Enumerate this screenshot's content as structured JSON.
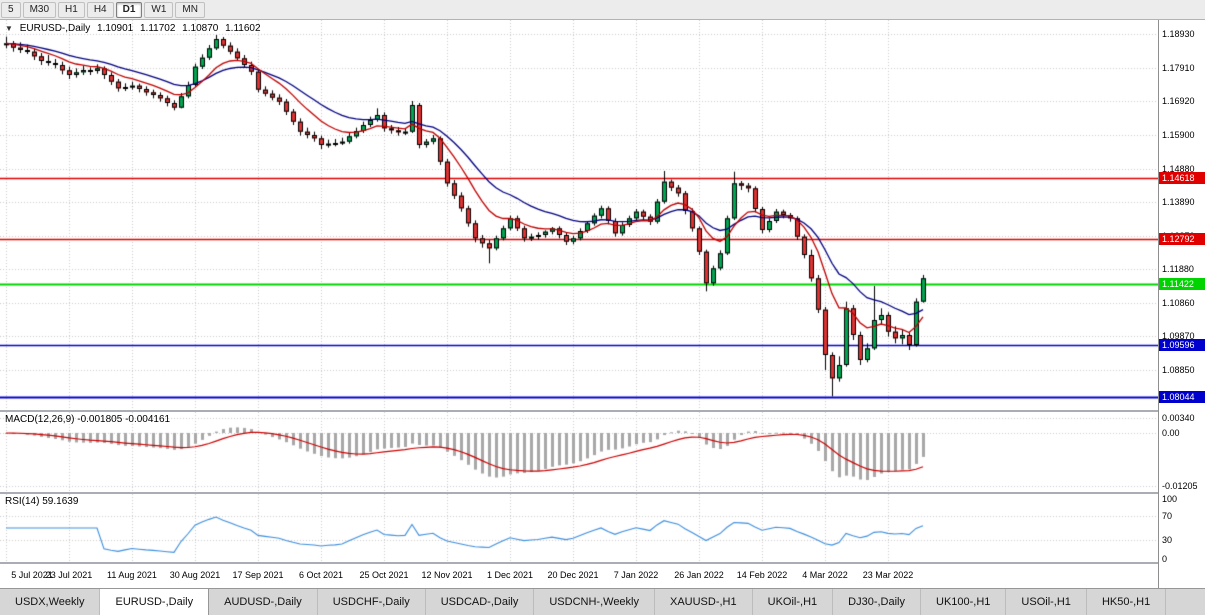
{
  "toolbar": {
    "periods": [
      "5",
      "M30",
      "H1",
      "H4",
      "D1",
      "W1",
      "MN"
    ],
    "active_period": "D1"
  },
  "icons": {
    "symbol_arrow": "▼"
  },
  "chart_header": {
    "symbol": "EURUSD-,Daily",
    "open": "1.10901",
    "high": "1.11702",
    "low": "1.10870",
    "close": "1.11602"
  },
  "macd_header": "MACD(12,26,9) -0.001805 -0.004161",
  "rsi_header": "RSI(14) 59.1639",
  "tabs": {
    "items": [
      "USDX,Weekly",
      "EURUSD-,Daily",
      "AUDUSD-,Daily",
      "USDCHF-,Daily",
      "USDCAD-,Daily",
      "USDCNH-,Weekly",
      "XAUUSD-,H1",
      "UKOil-,H1",
      "DJ30-,Daily",
      "UK100-,H1",
      "USOil-,H1",
      "HK50-,H1"
    ],
    "active": "EURUSD-,Daily"
  },
  "chart_data": {
    "type": "candlestick",
    "symbol": "EURUSD-,Daily",
    "y_axis": {
      "min": 1.0765,
      "max": 1.1935,
      "ticks": [
        "1.18930",
        "1.17910",
        "1.16920",
        "1.15900",
        "1.14880",
        "1.13890",
        "1.12870",
        "1.11880",
        "1.10860",
        "1.09870",
        "1.08850"
      ]
    },
    "x_labels": [
      {
        "index": 0,
        "label": "5 Jul 2021"
      },
      {
        "index": 9,
        "label": "23 Jul 2021"
      },
      {
        "index": 18,
        "label": "11 Aug 2021"
      },
      {
        "index": 27,
        "label": "30 Aug 2021"
      },
      {
        "index": 36,
        "label": "17 Sep 2021"
      },
      {
        "index": 45,
        "label": "6 Oct 2021"
      },
      {
        "index": 54,
        "label": "25 Oct 2021"
      },
      {
        "index": 63,
        "label": "12 Nov 2021"
      },
      {
        "index": 72,
        "label": "1 Dec 2021"
      },
      {
        "index": 81,
        "label": "20 Dec 2021"
      },
      {
        "index": 90,
        "label": "7 Jan 2022"
      },
      {
        "index": 99,
        "label": "26 Jan 2022"
      },
      {
        "index": 108,
        "label": "14 Feb 2022"
      },
      {
        "index": 117,
        "label": "4 Mar 2022"
      },
      {
        "index": 126,
        "label": "23 Mar 2022"
      }
    ],
    "h_lines": [
      {
        "value": 1.14618,
        "label": "1.14618",
        "color": "#e00000",
        "weight": 1.5
      },
      {
        "value": 1.12792,
        "label": "1.12792",
        "color": "#e00000",
        "weight": 1.5
      },
      {
        "value": 1.11422,
        "label": "1.11422",
        "color": "#00d400",
        "weight": 2
      },
      {
        "value": 1.09596,
        "label": "1.09596",
        "color": "#0000cc",
        "weight": 1.5
      },
      {
        "value": 1.08044,
        "label": "1.08044",
        "color": "#0000cc",
        "weight": 2
      }
    ],
    "moving_averages": [
      {
        "period": 18,
        "color": "#000080"
      },
      {
        "period": 9,
        "color": "#c00000"
      }
    ],
    "macd": {
      "fast": 12,
      "slow": 26,
      "signal": 9,
      "current_macd": "-0.001805",
      "current_signal": "-0.004161",
      "range": [
        -0.0135,
        0.0048
      ],
      "axis_ticks": [
        "0.00340",
        "0.00",
        "-0.01205"
      ]
    },
    "rsi": {
      "period": 14,
      "current_value": "59.1639",
      "levels": [
        70,
        30
      ],
      "axis_ticks": [
        "100",
        "70",
        "30",
        "0"
      ]
    },
    "colors": {
      "up": "#00a651",
      "down": "#e03232",
      "candle_border": "#000000",
      "grid": "#cccccc",
      "macd_hist": "#a8a8a8",
      "macd_signal": "#cc0000",
      "rsi_line": "#3e8ede"
    },
    "ohlc": [
      [
        1.186,
        1.1885,
        1.185,
        1.1865
      ],
      [
        1.1865,
        1.1872,
        1.184,
        1.1852
      ],
      [
        1.1852,
        1.1868,
        1.1836,
        1.1845
      ],
      [
        1.1845,
        1.1861,
        1.1833,
        1.184
      ],
      [
        1.184,
        1.1848,
        1.1815,
        1.1826
      ],
      [
        1.1826,
        1.1836,
        1.18,
        1.1812
      ],
      [
        1.1812,
        1.183,
        1.1798,
        1.1806
      ],
      [
        1.1806,
        1.1818,
        1.179,
        1.18
      ],
      [
        1.18,
        1.181,
        1.1772,
        1.1784
      ],
      [
        1.1784,
        1.1795,
        1.1758,
        1.177
      ],
      [
        1.177,
        1.179,
        1.1762,
        1.1778
      ],
      [
        1.1778,
        1.1797,
        1.177,
        1.1785
      ],
      [
        1.1785,
        1.1793,
        1.177,
        1.1782
      ],
      [
        1.1782,
        1.1802,
        1.1774,
        1.179
      ],
      [
        1.179,
        1.1796,
        1.1758,
        1.177
      ],
      [
        1.177,
        1.1778,
        1.174,
        1.175
      ],
      [
        1.175,
        1.1758,
        1.172,
        1.173
      ],
      [
        1.173,
        1.1745,
        1.1722,
        1.1734
      ],
      [
        1.1734,
        1.175,
        1.1726,
        1.1738
      ],
      [
        1.1738,
        1.1744,
        1.1718,
        1.1728
      ],
      [
        1.1728,
        1.1736,
        1.1708,
        1.1718
      ],
      [
        1.1718,
        1.1726,
        1.17,
        1.171
      ],
      [
        1.171,
        1.1718,
        1.169,
        1.17
      ],
      [
        1.17,
        1.1708,
        1.1676,
        1.1686
      ],
      [
        1.1686,
        1.1694,
        1.1664,
        1.1672
      ],
      [
        1.1672,
        1.1716,
        1.167,
        1.1706
      ],
      [
        1.1706,
        1.175,
        1.17,
        1.174
      ],
      [
        1.174,
        1.1804,
        1.1735,
        1.1795
      ],
      [
        1.1795,
        1.1832,
        1.1788,
        1.1822
      ],
      [
        1.1822,
        1.186,
        1.1815,
        1.185
      ],
      [
        1.185,
        1.189,
        1.1845,
        1.1878
      ],
      [
        1.1878,
        1.1884,
        1.185,
        1.1858
      ],
      [
        1.1858,
        1.1868,
        1.1832,
        1.184
      ],
      [
        1.184,
        1.185,
        1.1812,
        1.182
      ],
      [
        1.182,
        1.183,
        1.1792,
        1.18
      ],
      [
        1.18,
        1.181,
        1.177,
        1.178
      ],
      [
        1.178,
        1.1788,
        1.1718,
        1.1726
      ],
      [
        1.1726,
        1.1736,
        1.1706,
        1.1714
      ],
      [
        1.1714,
        1.1724,
        1.1694,
        1.1702
      ],
      [
        1.1702,
        1.1712,
        1.168,
        1.169
      ],
      [
        1.169,
        1.1698,
        1.165,
        1.166
      ],
      [
        1.166,
        1.1668,
        1.162,
        1.163
      ],
      [
        1.163,
        1.164,
        1.1588,
        1.16
      ],
      [
        1.16,
        1.1612,
        1.158,
        1.159
      ],
      [
        1.159,
        1.16,
        1.157,
        1.158
      ],
      [
        1.158,
        1.1588,
        1.1548,
        1.156
      ],
      [
        1.156,
        1.1576,
        1.1552,
        1.1564
      ],
      [
        1.1564,
        1.1578,
        1.1556,
        1.1566
      ],
      [
        1.1566,
        1.1582,
        1.156,
        1.157
      ],
      [
        1.157,
        1.1596,
        1.1564,
        1.1586
      ],
      [
        1.1586,
        1.1612,
        1.158,
        1.1602
      ],
      [
        1.1602,
        1.163,
        1.1596,
        1.162
      ],
      [
        1.162,
        1.1645,
        1.1614,
        1.1635
      ],
      [
        1.1635,
        1.167,
        1.163,
        1.165
      ],
      [
        1.165,
        1.1658,
        1.16,
        1.161
      ],
      [
        1.161,
        1.162,
        1.1594,
        1.1604
      ],
      [
        1.1604,
        1.1614,
        1.1588,
        1.1598
      ],
      [
        1.1598,
        1.161,
        1.159,
        1.16
      ],
      [
        1.16,
        1.1692,
        1.1596,
        1.168
      ],
      [
        1.168,
        1.1686,
        1.155,
        1.156
      ],
      [
        1.156,
        1.1578,
        1.1552,
        1.157
      ],
      [
        1.157,
        1.159,
        1.1562,
        1.158
      ],
      [
        1.158,
        1.1586,
        1.15,
        1.151
      ],
      [
        1.151,
        1.1518,
        1.1435,
        1.1445
      ],
      [
        1.1445,
        1.1455,
        1.1398,
        1.1408
      ],
      [
        1.1408,
        1.1418,
        1.136,
        1.137
      ],
      [
        1.137,
        1.1378,
        1.1315,
        1.1325
      ],
      [
        1.1325,
        1.1334,
        1.1268,
        1.128
      ],
      [
        1.128,
        1.129,
        1.1252,
        1.1265
      ],
      [
        1.1265,
        1.1275,
        1.1205,
        1.125
      ],
      [
        1.125,
        1.1288,
        1.1244,
        1.128
      ],
      [
        1.128,
        1.1318,
        1.1274,
        1.131
      ],
      [
        1.131,
        1.1348,
        1.1304,
        1.134
      ],
      [
        1.134,
        1.1348,
        1.1302,
        1.131
      ],
      [
        1.131,
        1.1318,
        1.127,
        1.128
      ],
      [
        1.128,
        1.1294,
        1.1272,
        1.1285
      ],
      [
        1.1285,
        1.1298,
        1.1276,
        1.129
      ],
      [
        1.129,
        1.1304,
        1.1282,
        1.13
      ],
      [
        1.13,
        1.1314,
        1.1292,
        1.131
      ],
      [
        1.131,
        1.1316,
        1.128,
        1.129
      ],
      [
        1.129,
        1.1298,
        1.126,
        1.127
      ],
      [
        1.127,
        1.1288,
        1.1262,
        1.128
      ],
      [
        1.128,
        1.131,
        1.1274,
        1.1302
      ],
      [
        1.1302,
        1.1332,
        1.1296,
        1.1325
      ],
      [
        1.1325,
        1.1355,
        1.1318,
        1.1348
      ],
      [
        1.1348,
        1.1378,
        1.134,
        1.137
      ],
      [
        1.137,
        1.1376,
        1.1322,
        1.1332
      ],
      [
        1.1332,
        1.134,
        1.1285,
        1.1295
      ],
      [
        1.1295,
        1.1328,
        1.1288,
        1.132
      ],
      [
        1.132,
        1.1348,
        1.1314,
        1.134
      ],
      [
        1.134,
        1.1368,
        1.1334,
        1.136
      ],
      [
        1.136,
        1.1366,
        1.1336,
        1.1345
      ],
      [
        1.1345,
        1.1352,
        1.132,
        1.133
      ],
      [
        1.133,
        1.1398,
        1.1324,
        1.139
      ],
      [
        1.139,
        1.1482,
        1.1384,
        1.145
      ],
      [
        1.145,
        1.1456,
        1.1422,
        1.1432
      ],
      [
        1.1432,
        1.144,
        1.1405,
        1.1415
      ],
      [
        1.1415,
        1.1422,
        1.1352,
        1.1362
      ],
      [
        1.1362,
        1.137,
        1.13,
        1.131
      ],
      [
        1.131,
        1.1316,
        1.123,
        1.124
      ],
      [
        1.124,
        1.1246,
        1.1121,
        1.1145
      ],
      [
        1.1145,
        1.1198,
        1.1138,
        1.119
      ],
      [
        1.119,
        1.1244,
        1.1184,
        1.1235
      ],
      [
        1.1235,
        1.1348,
        1.123,
        1.134
      ],
      [
        1.134,
        1.148,
        1.1335,
        1.1445
      ],
      [
        1.1445,
        1.1452,
        1.1425,
        1.1438
      ],
      [
        1.1438,
        1.1446,
        1.1418,
        1.143
      ],
      [
        1.143,
        1.1436,
        1.1358,
        1.1368
      ],
      [
        1.1368,
        1.1374,
        1.1295,
        1.1305
      ],
      [
        1.1305,
        1.134,
        1.1298,
        1.1332
      ],
      [
        1.1332,
        1.1368,
        1.1326,
        1.136
      ],
      [
        1.136,
        1.1366,
        1.134,
        1.135
      ],
      [
        1.135,
        1.1356,
        1.133,
        1.134
      ],
      [
        1.134,
        1.1346,
        1.1275,
        1.1285
      ],
      [
        1.1285,
        1.1292,
        1.122,
        1.123
      ],
      [
        1.123,
        1.1246,
        1.115,
        1.116
      ],
      [
        1.116,
        1.117,
        1.1056,
        1.1066
      ],
      [
        1.1066,
        1.1074,
        1.0885,
        1.093
      ],
      [
        1.093,
        1.0938,
        1.0806,
        1.086
      ],
      [
        1.086,
        1.0926,
        1.085,
        1.09
      ],
      [
        1.09,
        1.109,
        1.0895,
        1.107
      ],
      [
        1.107,
        1.108,
        1.0975,
        1.099
      ],
      [
        1.099,
        1.1,
        1.09,
        1.0915
      ],
      [
        1.0915,
        1.0965,
        1.0908,
        1.095
      ],
      [
        1.095,
        1.1137,
        1.0945,
        1.1035
      ],
      [
        1.1035,
        1.107,
        1.1022,
        1.105
      ],
      [
        1.105,
        1.1058,
        1.0985,
        1.1
      ],
      [
        1.1,
        1.1016,
        1.0965,
        1.098
      ],
      [
        1.098,
        1.1008,
        1.0962,
        1.099
      ],
      [
        1.099,
        1.0998,
        1.0945,
        1.096
      ],
      [
        1.096,
        1.11,
        1.0955,
        1.109
      ],
      [
        1.10901,
        1.11702,
        1.1087,
        1.11602
      ]
    ]
  }
}
